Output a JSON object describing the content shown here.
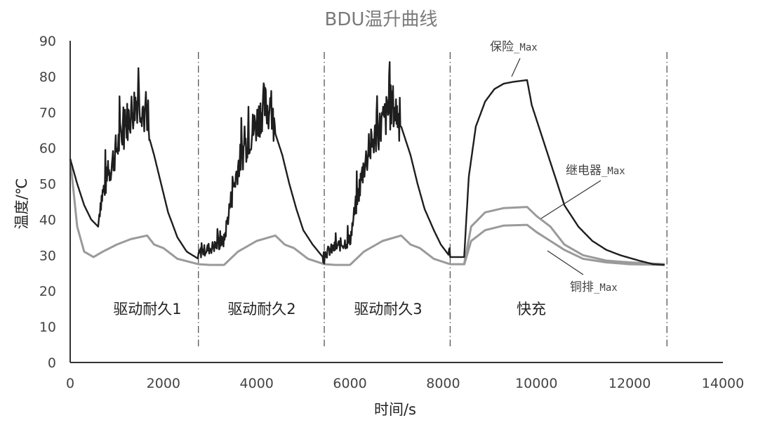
{
  "chart_data": {
    "type": "line",
    "title": "BDU温升曲线",
    "xlabel": "时间/s",
    "ylabel": "温度/℃",
    "xlim": [
      0,
      14000
    ],
    "ylim": [
      0,
      90
    ],
    "xticks": [
      0,
      2000,
      4000,
      6000,
      8000,
      10000,
      12000,
      14000
    ],
    "yticks": [
      0,
      10,
      20,
      30,
      40,
      50,
      60,
      70,
      80,
      90
    ],
    "grid": false,
    "legend": "callout annotations",
    "phases": [
      {
        "label": "驱动耐久1",
        "x_start": 0,
        "x_end": 2750
      },
      {
        "label": "驱动耐久2",
        "x_start": 2750,
        "x_end": 5450
      },
      {
        "label": "驱动耐久3",
        "x_start": 5450,
        "x_end": 8150
      },
      {
        "label": "快充",
        "x_start": 8150,
        "x_end": 12800
      }
    ],
    "phase_dividers_x": [
      2750,
      5450,
      8150,
      12800
    ],
    "series": [
      {
        "name": "保险_Max",
        "color": "#1e1e1e",
        "x": [
          0,
          150,
          300,
          450,
          600,
          650,
          800,
          1000,
          1200,
          1350,
          1450,
          1550,
          1650,
          1800,
          1950,
          2100,
          2300,
          2500,
          2750,
          2760,
          2900,
          3100,
          3300,
          3400,
          3600,
          3800,
          4000,
          4150,
          4300,
          4400,
          4550,
          4700,
          4850,
          5000,
          5200,
          5450,
          5460,
          5600,
          5800,
          6000,
          6100,
          6300,
          6500,
          6700,
          6900,
          7000,
          7150,
          7300,
          7450,
          7600,
          7800,
          7950,
          8150,
          8450,
          8550,
          8700,
          8900,
          9100,
          9300,
          9500,
          9800,
          9900,
          10050,
          10200,
          10350,
          10600,
          10900,
          11200,
          11500,
          11800,
          12200,
          12500,
          12750
        ],
        "values": [
          57,
          50,
          44,
          40,
          38,
          45,
          52,
          60,
          67,
          71,
          74,
          72,
          65,
          58,
          50,
          42,
          35,
          31,
          29,
          30.5,
          31.5,
          32.5,
          34,
          42,
          55,
          62,
          67,
          72,
          70,
          64,
          58,
          50,
          43,
          37,
          33,
          29,
          30.5,
          31.5,
          33,
          34,
          42,
          55,
          62,
          67,
          72,
          70,
          64,
          58,
          50,
          43,
          37,
          33,
          29.5,
          29.5,
          52,
          66,
          73,
          76.5,
          78,
          78.5,
          79,
          72,
          66,
          60,
          54,
          44,
          38,
          34,
          31.5,
          30,
          28.5,
          27.5,
          27.3
        ]
      },
      {
        "name": "继电器_Max",
        "color": "#9a9a9a",
        "x": [
          0,
          150,
          300,
          500,
          700,
          1000,
          1300,
          1650,
          1800,
          2000,
          2300,
          2750,
          3000,
          3300,
          3600,
          4000,
          4400,
          4600,
          4800,
          5100,
          5450,
          5700,
          6000,
          6300,
          6700,
          7100,
          7300,
          7500,
          7800,
          8150,
          8450,
          8600,
          8900,
          9300,
          9800,
          10000,
          10300,
          10600,
          11000,
          11500,
          12000,
          12750
        ],
        "values": [
          57,
          38,
          31,
          29.5,
          31,
          33,
          34.5,
          35.5,
          33,
          32,
          29,
          27.5,
          27.3,
          27.3,
          31,
          34,
          35.5,
          33,
          32,
          29,
          27.5,
          27.3,
          27.3,
          31,
          34,
          35.5,
          33,
          32,
          29,
          27.5,
          27.5,
          38,
          42,
          43.2,
          43.5,
          41,
          38,
          33,
          30,
          28.5,
          28,
          27.5
        ]
      },
      {
        "name": "铜排_Max",
        "color": "#9a9a9a",
        "x": [
          8450,
          8600,
          8900,
          9300,
          9800,
          10000,
          10300,
          10600,
          11000,
          11500,
          12000,
          12750
        ],
        "values": [
          27.3,
          34,
          37,
          38.3,
          38.5,
          36.5,
          34,
          31.5,
          29,
          28,
          27.5,
          27.3
        ]
      }
    ],
    "annotations": [
      {
        "text": "保险_Max",
        "points_to_series": "保险_Max"
      },
      {
        "text": "继电器_Max",
        "points_to_series": "继电器_Max"
      },
      {
        "text": "铜排_Max",
        "points_to_series": "铜排_Max"
      }
    ]
  },
  "labels": {
    "title": "BDU温升曲线",
    "xlabel": "时间/s",
    "ylabel": "温度/℃",
    "phase1": "驱动耐久1",
    "phase2": "驱动耐久2",
    "phase3": "驱动耐久3",
    "phase4": "快充",
    "callout_fuse_cn": "保险",
    "callout_relay_cn": "继电器",
    "callout_busbar_cn": "铜排",
    "callout_suffix": "_Max"
  }
}
